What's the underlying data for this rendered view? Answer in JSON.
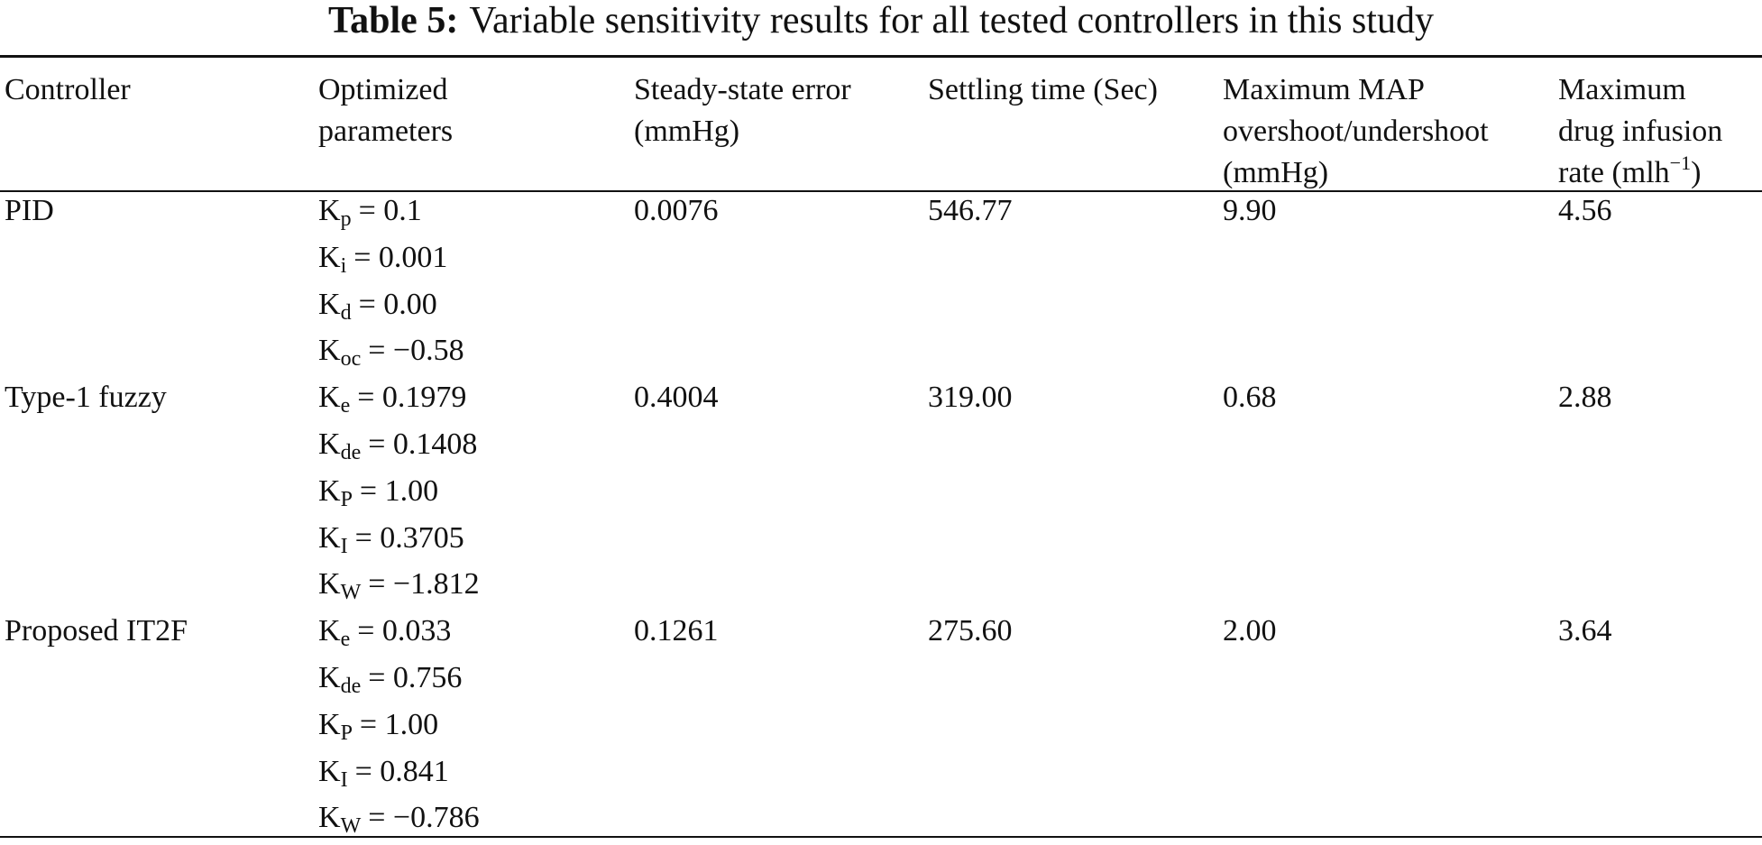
{
  "table_title": {
    "label": "Table 5:",
    "text": "Variable sensitivity results for all tested controllers in this study"
  },
  "table": {
    "header": [
      {
        "lines": [
          "Controller"
        ]
      },
      {
        "lines": [
          "Optimized",
          "parameters"
        ]
      },
      {
        "lines": [
          "Steady-state error",
          "(mmHg)"
        ]
      },
      {
        "lines": [
          "Settling time (Sec)"
        ]
      },
      {
        "lines": [
          "Maximum MAP",
          "overshoot/undershoot",
          "(mmHg)"
        ]
      },
      {
        "lines": [
          "Maximum",
          "drug infusion",
          {
            "text": "rate (mlh",
            "sup": "−1",
            "after": ")"
          }
        ]
      }
    ],
    "rows": [
      {
        "controller": "PID",
        "params": [
          {
            "base": "K",
            "sub": "p",
            "rest": "= 0.1"
          },
          {
            "base": "K",
            "sub": "i",
            "rest": "= 0.001"
          },
          {
            "base": "K",
            "sub": "d",
            "rest": "= 0.00"
          },
          {
            "base": "K",
            "sub": "oc",
            "rest": "= −0.58"
          }
        ],
        "cells": [
          "0.0076",
          "546.77",
          "9.90",
          "4.56"
        ]
      },
      {
        "controller": "Type-1 fuzzy",
        "params": [
          {
            "base": "K",
            "sub": "e",
            "rest": "= 0.1979"
          },
          {
            "base": "K",
            "sub": "de",
            "rest": "= 0.1408"
          },
          {
            "base": "K",
            "sub": "P",
            "rest": "= 1.00"
          },
          {
            "base": "K",
            "sub": "I",
            "rest": "= 0.3705"
          },
          {
            "base": "K",
            "sub": "W",
            "rest": "= −1.812"
          }
        ],
        "cells": [
          "0.4004",
          "319.00",
          "0.68",
          "2.88"
        ]
      },
      {
        "controller": "Proposed IT2F",
        "params": [
          {
            "base": "K",
            "sub": "e",
            "rest": "= 0.033"
          },
          {
            "base": "K",
            "sub": "de",
            "rest": "= 0.756"
          },
          {
            "base": "K",
            "sub": "P",
            "rest": "= 1.00"
          },
          {
            "base": "K",
            "sub": "I",
            "rest": "= 0.841"
          },
          {
            "base": "K",
            "sub": "W",
            "rest": "= −0.786"
          }
        ],
        "cells": [
          "0.1261",
          "275.60",
          "2.00",
          "3.64"
        ]
      }
    ]
  }
}
